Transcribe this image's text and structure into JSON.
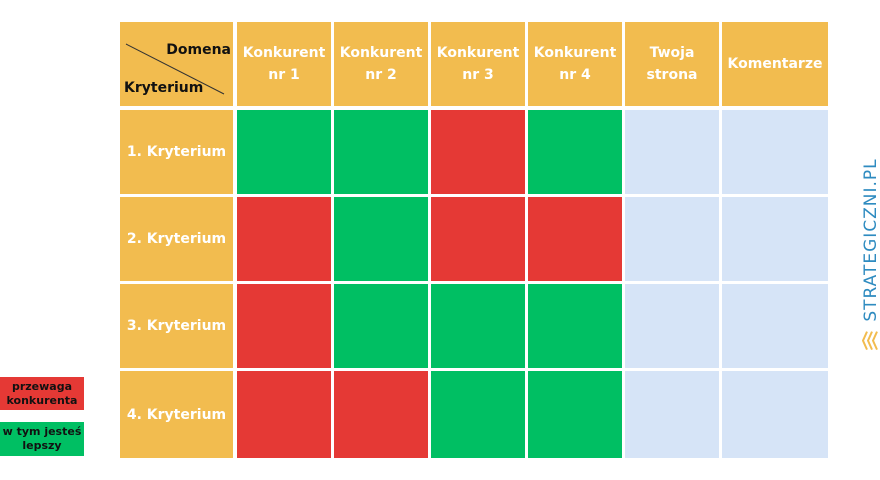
{
  "corner": {
    "top_label": "Domena",
    "bottom_label": "Kryterium"
  },
  "columns": [
    {
      "line1": "Konkurent",
      "line2": "nr 1"
    },
    {
      "line1": "Konkurent",
      "line2": "nr 2"
    },
    {
      "line1": "Konkurent",
      "line2": "nr 3"
    },
    {
      "line1": "Konkurent",
      "line2": "nr 4"
    },
    {
      "line1": "Twoja",
      "line2": "strona"
    },
    {
      "line1": "Komentarze",
      "line2": ""
    }
  ],
  "rows": [
    {
      "label": "1. Kryterium",
      "cells": [
        "lepszy",
        "lepszy",
        "przewaga",
        "lepszy",
        "empty",
        "empty"
      ]
    },
    {
      "label": "2. Kryterium",
      "cells": [
        "przewaga",
        "lepszy",
        "przewaga",
        "przewaga",
        "empty",
        "empty"
      ]
    },
    {
      "label": "3. Kryterium",
      "cells": [
        "przewaga",
        "lepszy",
        "lepszy",
        "lepszy",
        "empty",
        "empty"
      ]
    },
    {
      "label": "4. Kryterium",
      "cells": [
        "przewaga",
        "przewaga",
        "lepszy",
        "lepszy",
        "empty",
        "empty"
      ]
    }
  ],
  "colors": {
    "header": "#F2BC4F",
    "przewaga": "#E53935",
    "lepszy": "#00BF63",
    "empty": "#D6E4F7"
  },
  "legend": {
    "advantage_line1": "przewaga",
    "advantage_line2": "konkurenta",
    "better_line1": "w tym jesteś",
    "better_line2": "lepszy"
  },
  "brand": {
    "text": "STRATEGICZNI.PL",
    "icon": "stacked-chevrons-logo-icon"
  }
}
